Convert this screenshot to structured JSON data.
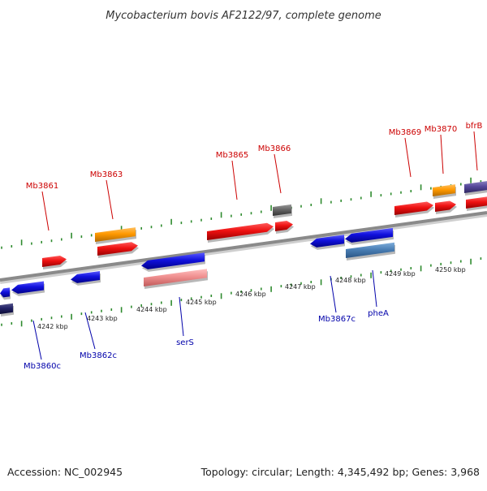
{
  "title": "Mycobacterium bovis AF2122/97, complete genome",
  "footer": {
    "accession": "Accession: NC_002945",
    "topology": "Topology: circular; Length: 4,345,492 bp; Genes: 3,968"
  },
  "scale": {
    "unit_labels": [
      "4242 kbp",
      "4243 kbp",
      "4244 kbp",
      "4245 kbp",
      "4246 kbp",
      "4247 kbp",
      "4248 kbp",
      "4249 kbp",
      "4250 kbp"
    ]
  },
  "colors": {
    "forward_gene": "#ee1111",
    "reverse_gene": "#1111dd",
    "forward_label": "#cc0000",
    "reverse_label": "#0000aa",
    "orange_feature": "#ff9900",
    "gray_feature": "#666666",
    "steelblue_feature": "#4a7fb5",
    "pink_feature": "#f09090",
    "navy_feature": "#222266",
    "backbone": "#8a8a8a",
    "tick_dots": "#2e8b2e"
  },
  "forward_labels": [
    "Mb3861",
    "Mb3863",
    "Mb3865",
    "Mb3866",
    "Mb3869",
    "Mb3870",
    "bfrB"
  ],
  "reverse_labels": [
    "Mb3860c",
    "Mb3862c",
    "serS",
    "Mb3867c",
    "pheA"
  ]
}
